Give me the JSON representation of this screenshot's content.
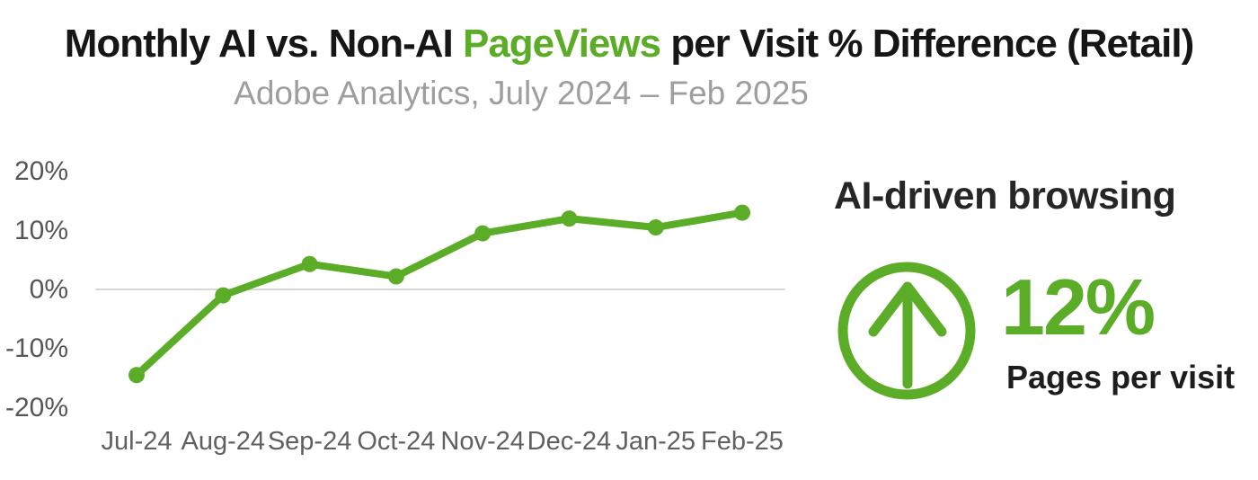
{
  "title": {
    "prefix": "Monthly AI vs. Non-AI ",
    "highlight": "PageViews",
    "suffix": " per Visit % Difference (Retail)"
  },
  "subtitle": "Adobe Analytics, July 2024 – Feb 2025",
  "chart_data": {
    "type": "line",
    "categories": [
      "Jul-24",
      "Aug-24",
      "Sep-24",
      "Oct-24",
      "Nov-24",
      "Dec-24",
      "Jan-25",
      "Feb-25"
    ],
    "values": [
      -14.5,
      -1,
      4.3,
      2.2,
      9.5,
      12,
      10.5,
      13
    ],
    "title": "Monthly AI vs. Non-AI PageViews per Visit % Difference (Retail)",
    "subtitle": "Adobe Analytics, July 2024 – Feb 2025",
    "xlabel": "",
    "ylabel": "",
    "ylim": [
      -20,
      20
    ],
    "yticks": [
      20,
      10,
      0,
      -10,
      -20
    ],
    "ytick_labels": [
      "20%",
      "10%",
      "0%",
      "-10%",
      "-20%"
    ],
    "grid": "zero-line-only",
    "legend": "none",
    "line_color": "#5BAD27",
    "marker": "circle"
  },
  "callout": {
    "heading": "AI-driven browsing",
    "icon": "arrow-up-circle-icon",
    "value": "12%",
    "label": "Pages per visit"
  },
  "colors": {
    "accent_green": "#5BAD27",
    "title_text": "#161616",
    "subtitle_text": "#9e9e9e",
    "axis_text": "#565656",
    "gridline": "#d8d8d8",
    "dark_text": "#262626",
    "background": "#ffffff"
  }
}
